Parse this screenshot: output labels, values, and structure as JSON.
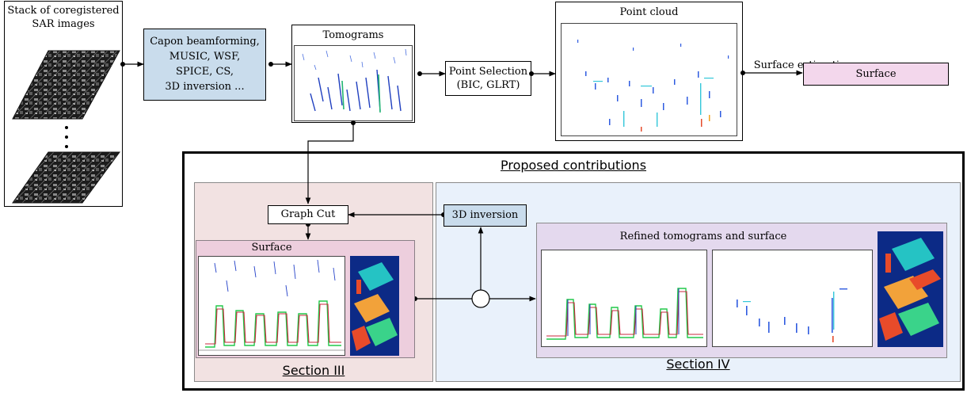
{
  "stack": {
    "title_line1": "Stack of coregistered",
    "title_line2": "SAR images"
  },
  "methods": {
    "line1": "Capon beamforming,",
    "line2": "MUSIC, WSF,",
    "line3": "SPICE, CS,",
    "line4": "3D inversion ..."
  },
  "tomograms": {
    "title": "Tomograms"
  },
  "point_selection": {
    "line1": "Point Selection",
    "line2": "(BIC, GLRT)"
  },
  "point_cloud": {
    "title": "Point cloud"
  },
  "surface_estimation": {
    "label": "Surface estimation"
  },
  "surface_output": {
    "label": "Surface"
  },
  "contributions": {
    "title": "Proposed contributions"
  },
  "section3": {
    "label": "Section III",
    "graph_cut": "Graph Cut",
    "surface_title": "Surface"
  },
  "section4": {
    "label": "Section IV",
    "inversion": "3D inversion",
    "refined_title": "Refined tomograms and surface"
  },
  "colors": {
    "methods_fill": "#c9dcec",
    "surface_fill": "#f3d7ec",
    "section3_fill": "#f2e2e2",
    "section4_fill": "#e9f1fb",
    "refined_fill": "#e4d9ee",
    "surface_panel_fill": "#edcedd"
  }
}
